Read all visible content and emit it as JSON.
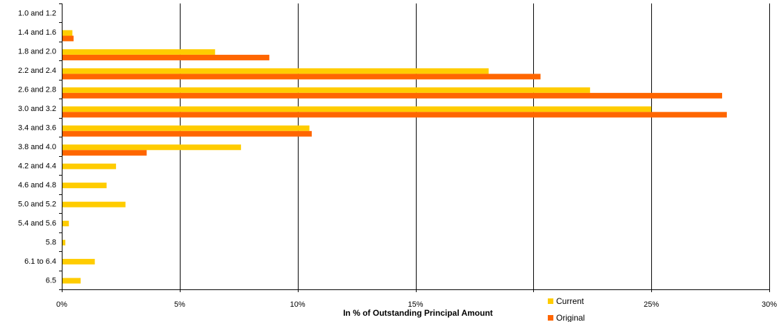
{
  "chart_data": {
    "type": "bar",
    "orientation": "horizontal",
    "title": "",
    "xlabel": "In % of Outstanding Principal Amount",
    "ylabel": "",
    "categories": [
      "1.0 and 1.2",
      "1.4 and 1.6",
      "1.8 and 2.0",
      "2.2 and 2.4",
      "2.6 and 2.8",
      "3.0 and 3.2",
      "3.4 and 3.6",
      "3.8 and 4.0",
      "4.2 and 4.4",
      "4.6 and 4.8",
      "5.0 and 5.2",
      "5.4 and 5.6",
      "5.8",
      "6.1 to 6.4",
      "6.5"
    ],
    "series": [
      {
        "name": "Current",
        "color": "#FFCC00",
        "values": [
          0,
          0.45,
          6.5,
          18.1,
          22.4,
          25.0,
          10.5,
          7.6,
          2.3,
          1.9,
          2.7,
          0.3,
          0.15,
          1.4,
          0.8
        ]
      },
      {
        "name": "Original",
        "color": "#FF6600",
        "values": [
          0,
          0.5,
          8.8,
          20.3,
          28.0,
          28.2,
          10.6,
          3.6,
          0,
          0,
          0,
          0,
          0,
          0,
          0
        ]
      }
    ],
    "xlim": [
      0,
      30
    ],
    "xticks": [
      0,
      5,
      10,
      15,
      20,
      25,
      30
    ],
    "xtick_labels": [
      "0%",
      "5%",
      "10%",
      "15%",
      "",
      "25%",
      "30%"
    ],
    "grid": "vertical",
    "legend_position": "bottom-right"
  }
}
